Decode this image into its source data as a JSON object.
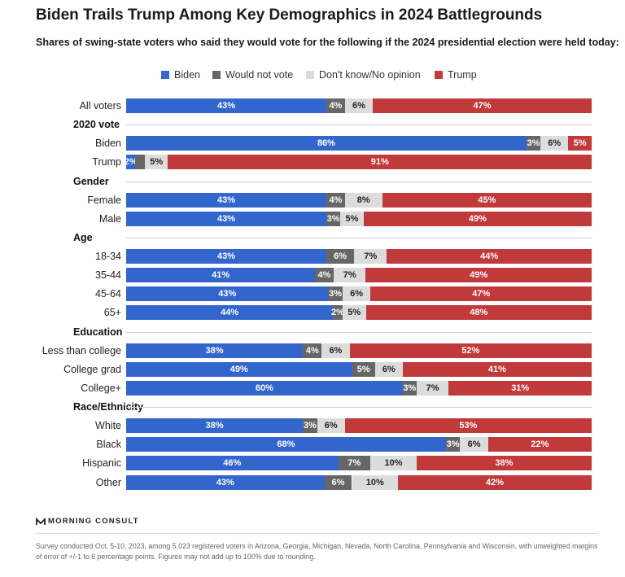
{
  "header": {
    "title": "Biden Trails Trump Among Key Demographics in 2024 Battlegrounds",
    "subtitle": "Shares of swing-state voters who said they would vote for the following if the 2024 presidential election were held today:"
  },
  "legend": [
    {
      "name": "Biden",
      "color": "#3366cc"
    },
    {
      "name": "Would not vote",
      "color": "#666666"
    },
    {
      "name": "Don't know/No opinion",
      "color": "#dcdcdc"
    },
    {
      "name": "Trump",
      "color": "#c0393b"
    }
  ],
  "chart_data": {
    "type": "bar",
    "orientation": "horizontal",
    "stacked": true,
    "series": [
      {
        "name": "Biden",
        "color": "#3366cc"
      },
      {
        "name": "Would not vote",
        "color": "#666666"
      },
      {
        "name": "Don't know/No opinion",
        "color": "#dcdcdc"
      },
      {
        "name": "Trump",
        "color": "#c0393b"
      }
    ],
    "rows": [
      {
        "group": null,
        "label": "All voters",
        "values": [
          43,
          4,
          6,
          47
        ]
      },
      {
        "group": "2020 vote",
        "label": "Biden",
        "values": [
          86,
          3,
          6,
          5
        ]
      },
      {
        "group": "2020 vote",
        "label": "Trump",
        "values": [
          2,
          2,
          5,
          91
        ]
      },
      {
        "group": "Gender",
        "label": "Female",
        "values": [
          43,
          4,
          8,
          45
        ]
      },
      {
        "group": "Gender",
        "label": "Male",
        "values": [
          43,
          3,
          5,
          49
        ]
      },
      {
        "group": "Age",
        "label": "18-34",
        "values": [
          43,
          6,
          7,
          44
        ]
      },
      {
        "group": "Age",
        "label": "35-44",
        "values": [
          41,
          4,
          7,
          49
        ]
      },
      {
        "group": "Age",
        "label": "45-64",
        "values": [
          43,
          3,
          6,
          47
        ]
      },
      {
        "group": "Age",
        "label": "65+",
        "values": [
          44,
          2,
          5,
          48
        ]
      },
      {
        "group": "Education",
        "label": "Less than college",
        "values": [
          38,
          4,
          6,
          52
        ]
      },
      {
        "group": "Education",
        "label": "College grad",
        "values": [
          49,
          5,
          6,
          41
        ]
      },
      {
        "group": "Education",
        "label": "College+",
        "values": [
          60,
          3,
          7,
          31
        ]
      },
      {
        "group": "Race/Ethnicity",
        "label": "White",
        "values": [
          38,
          3,
          6,
          53
        ]
      },
      {
        "group": "Race/Ethnicity",
        "label": "Black",
        "values": [
          68,
          3,
          6,
          22
        ]
      },
      {
        "group": "Race/Ethnicity",
        "label": "Hispanic",
        "values": [
          46,
          7,
          10,
          38
        ]
      },
      {
        "group": "Race/Ethnicity",
        "label": "Other",
        "values": [
          43,
          6,
          10,
          42
        ]
      }
    ],
    "value_labels": [
      [
        "43%",
        "4%",
        "6%",
        "47%"
      ],
      [
        "86%",
        "3%",
        "6%",
        "5%"
      ],
      [
        "2%",
        "",
        "5%",
        "91%"
      ],
      [
        "43%",
        "4%",
        "8%",
        "45%"
      ],
      [
        "43%",
        "3%",
        "5%",
        "49%"
      ],
      [
        "43%",
        "6%",
        "7%",
        "44%"
      ],
      [
        "41%",
        "4%",
        "7%",
        "49%"
      ],
      [
        "43%",
        "3%",
        "6%",
        "47%"
      ],
      [
        "44%",
        "2%",
        "5%",
        "48%"
      ],
      [
        "38%",
        "4%",
        "6%",
        "52%"
      ],
      [
        "49%",
        "5%",
        "6%",
        "41%"
      ],
      [
        "60%",
        "3%",
        "7%",
        "31%"
      ],
      [
        "38%",
        "3%",
        "6%",
        "53%"
      ],
      [
        "68%",
        "3%",
        "6%",
        "22%"
      ],
      [
        "46%",
        "7%",
        "10%",
        "38%"
      ],
      [
        "43%",
        "6%",
        "10%",
        "42%"
      ]
    ],
    "groups": [
      "2020 vote",
      "Gender",
      "Age",
      "Education",
      "Race/Ethnicity"
    ]
  },
  "source": {
    "brand": "MORNING CONSULT",
    "footnote": "Survey conducted Oct. 5-10, 2023, among 5,023 registered voters in Arizona, Georgia, Michigan, Nevada, North Carolina, Pennsylvania and Wisconsin, with unweighted margins of error of +/-1 to 6 percentage points. Figures may not add up to 100% due to rounding."
  }
}
